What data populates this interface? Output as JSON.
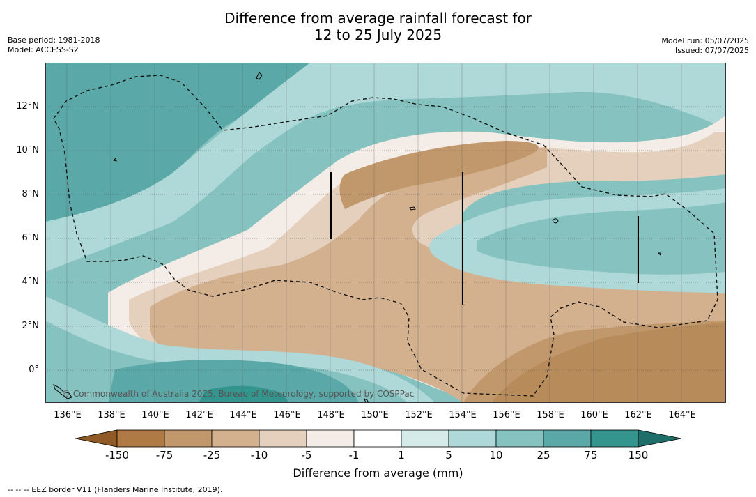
{
  "title_line1": "Difference from average rainfall forecast for",
  "title_line2": "12 to 25 July 2025",
  "base_period": "Base period: 1981-2018",
  "model": "Model: ACCESS-S2",
  "model_run": "Model run: 05/07/2025",
  "issued": "Issued: 07/07/2025",
  "copyright": "© Commonwealth of Australia 2025, Bureau of Meteorology, supported by COSPPac",
  "footnote": "--  --  -- EEZ border V11 (Flanders Marine Institute, 2019).",
  "colorbar": {
    "title": "Difference from average (mm)",
    "labels": [
      "-150",
      "-75",
      "-25",
      "-10",
      "-5",
      "-1",
      "1",
      "5",
      "10",
      "25",
      "75",
      "150"
    ],
    "colors": [
      "#8f5a26",
      "#b07a44",
      "#c1986c",
      "#d3b08e",
      "#e4d0bd",
      "#f4ece6",
      "#ffffff",
      "#d5ebea",
      "#afd8d8",
      "#86c2c0",
      "#5aa9a8",
      "#34958f",
      "#1f6e6a"
    ]
  },
  "axes": {
    "lat_labels": [
      "12°N",
      "10°N",
      "8°N",
      "6°N",
      "4°N",
      "2°N",
      "0°"
    ],
    "lon_labels": [
      "136°E",
      "138°E",
      "140°E",
      "142°E",
      "144°E",
      "146°E",
      "148°E",
      "150°E",
      "152°E",
      "154°E",
      "156°E",
      "158°E",
      "160°E",
      "162°E",
      "164°E"
    ]
  }
}
